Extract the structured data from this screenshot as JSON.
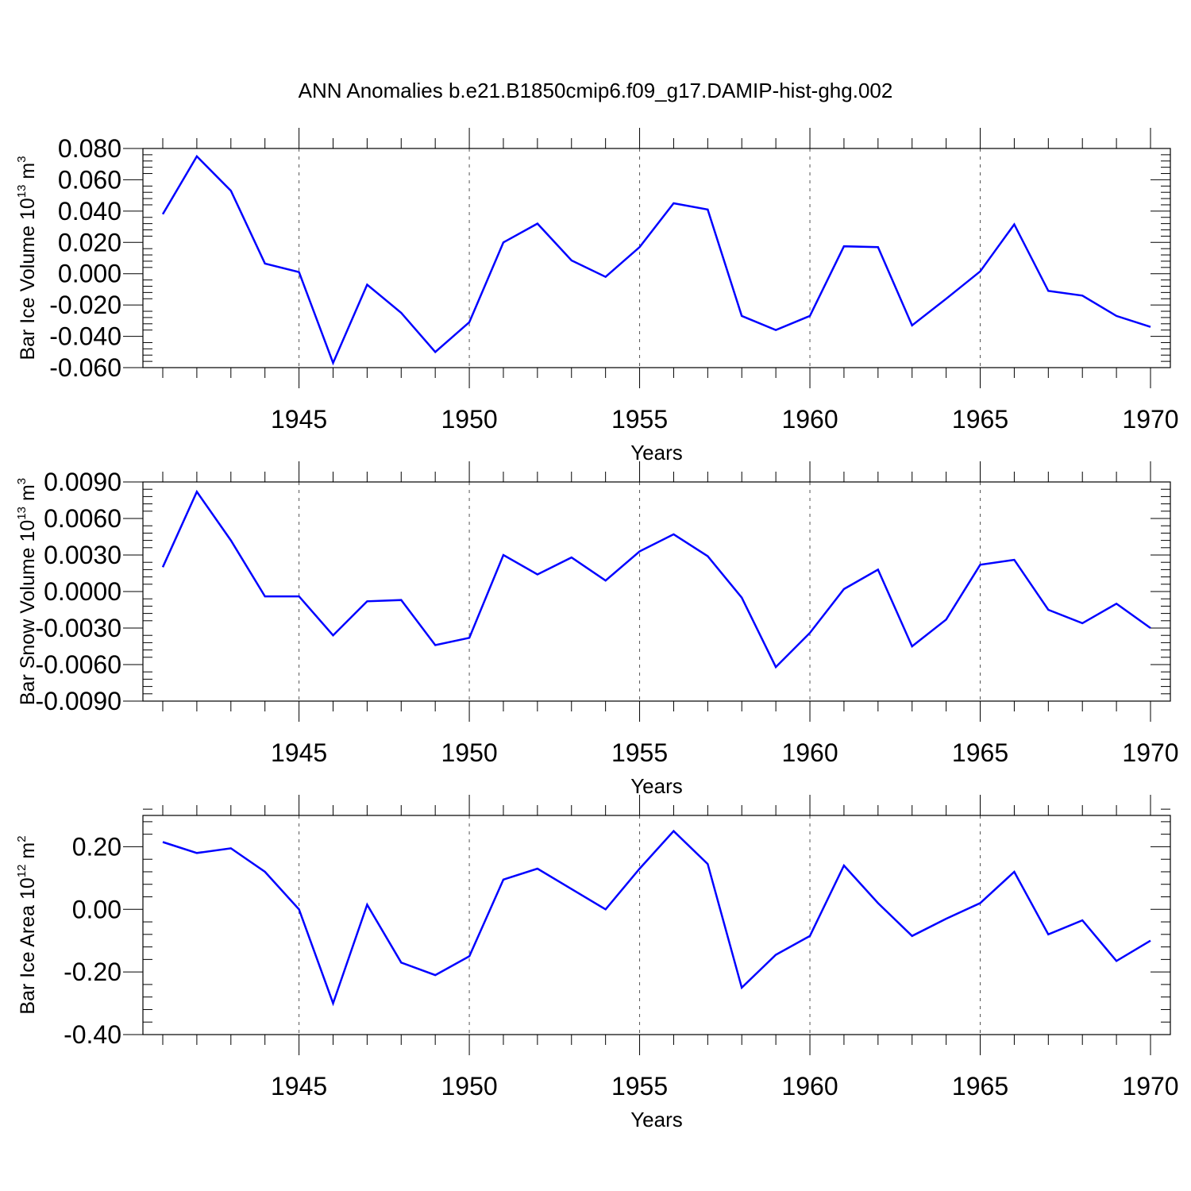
{
  "title": "ANN Anomalies b.e21.B1850cmip6.f09_g17.DAMIP-hist-ghg.002",
  "colors": {
    "line": "#0000ff",
    "axis": "#000000",
    "grid": "#555555"
  },
  "chart_data": [
    {
      "type": "line",
      "ylabel_text": "Bar Ice Volume 10",
      "ylabel_exp": "13",
      "ylabel_unit": " m",
      "ylabel_unit_exp": "3",
      "ylabel_full": "Bar Ice Volume 10^13 m^3",
      "xlabel": "Years",
      "xlim": [
        1941,
        1970
      ],
      "ylim": [
        -0.06,
        0.08
      ],
      "yticks": [
        -0.06,
        -0.04,
        -0.02,
        0.0,
        0.02,
        0.04,
        0.06,
        0.08
      ],
      "ytick_labels": [
        "-0.060",
        "-0.040",
        "-0.020",
        "0.000",
        "0.020",
        "0.040",
        "0.060",
        "0.080"
      ],
      "xticks": [
        1945,
        1950,
        1955,
        1960,
        1965,
        1970
      ],
      "xtick_labels": [
        "1945",
        "1950",
        "1955",
        "1960",
        "1965",
        "1970"
      ],
      "x": [
        1941,
        1942,
        1943,
        1944,
        1945,
        1946,
        1947,
        1948,
        1949,
        1950,
        1951,
        1952,
        1953,
        1954,
        1955,
        1956,
        1957,
        1958,
        1959,
        1960,
        1961,
        1962,
        1963,
        1964,
        1965,
        1966,
        1967,
        1968,
        1969,
        1970
      ],
      "values": [
        0.038,
        0.075,
        0.053,
        0.0065,
        0.001,
        -0.057,
        -0.007,
        -0.025,
        -0.05,
        -0.031,
        0.02,
        0.032,
        0.0085,
        -0.002,
        0.017,
        0.045,
        0.041,
        -0.027,
        -0.036,
        -0.027,
        0.0175,
        0.017,
        -0.033,
        -0.016,
        0.0015,
        0.0315,
        -0.011,
        -0.014,
        -0.027,
        -0.034
      ]
    },
    {
      "type": "line",
      "ylabel_text": "Bar Snow Volume 10",
      "ylabel_exp": "13",
      "ylabel_unit": " m",
      "ylabel_unit_exp": "3",
      "ylabel_full": "Bar Snow Volume 10^13 m^3",
      "xlabel": "Years",
      "xlim": [
        1941,
        1970
      ],
      "ylim": [
        -0.009,
        0.009
      ],
      "yticks": [
        -0.009,
        -0.006,
        -0.003,
        0.0,
        0.003,
        0.006,
        0.009
      ],
      "ytick_labels": [
        "-0.0090",
        "-0.0060",
        "-0.0030",
        "0.0000",
        "0.0030",
        "0.0060",
        "0.0090"
      ],
      "xticks": [
        1945,
        1950,
        1955,
        1960,
        1965,
        1970
      ],
      "xtick_labels": [
        "1945",
        "1950",
        "1955",
        "1960",
        "1965",
        "1970"
      ],
      "x": [
        1941,
        1942,
        1943,
        1944,
        1945,
        1946,
        1947,
        1948,
        1949,
        1950,
        1951,
        1952,
        1953,
        1954,
        1955,
        1956,
        1957,
        1958,
        1959,
        1960,
        1961,
        1962,
        1963,
        1964,
        1965,
        1966,
        1967,
        1968,
        1969,
        1970
      ],
      "values": [
        0.002,
        0.0082,
        0.0042,
        -0.0004,
        -0.0004,
        -0.0036,
        -0.0008,
        -0.0007,
        -0.0044,
        -0.0038,
        0.003,
        0.0014,
        0.0028,
        0.0009,
        0.0033,
        0.0047,
        0.0029,
        -0.0005,
        -0.0062,
        -0.0034,
        0.0002,
        0.0018,
        -0.0045,
        -0.0023,
        0.0022,
        0.0026,
        -0.0015,
        -0.0026,
        -0.001,
        -0.003
      ]
    },
    {
      "type": "line",
      "ylabel_text": "Bar Ice Area 10",
      "ylabel_exp": "12",
      "ylabel_unit": " m",
      "ylabel_unit_exp": "2",
      "ylabel_full": "Bar Ice Area 10^12 m^2",
      "xlabel": "Years",
      "xlim": [
        1941,
        1970
      ],
      "ylim": [
        -0.4,
        0.3
      ],
      "yticks": [
        -0.4,
        -0.2,
        0.0,
        0.2
      ],
      "ytick_labels": [
        "-0.40",
        "-0.20",
        "0.00",
        "0.20"
      ],
      "xticks": [
        1945,
        1950,
        1955,
        1960,
        1965,
        1970
      ],
      "xtick_labels": [
        "1945",
        "1950",
        "1955",
        "1960",
        "1965",
        "1970"
      ],
      "x": [
        1941,
        1942,
        1943,
        1944,
        1945,
        1946,
        1947,
        1948,
        1949,
        1950,
        1951,
        1952,
        1953,
        1954,
        1955,
        1956,
        1957,
        1958,
        1959,
        1960,
        1961,
        1962,
        1963,
        1964,
        1965,
        1966,
        1967,
        1968,
        1969,
        1970
      ],
      "values": [
        0.215,
        0.18,
        0.195,
        0.12,
        0.0,
        -0.3,
        0.015,
        -0.17,
        -0.21,
        -0.15,
        0.095,
        0.13,
        0.065,
        0.0,
        0.13,
        0.25,
        0.145,
        -0.25,
        -0.145,
        -0.085,
        0.14,
        0.02,
        -0.085,
        -0.03,
        0.02,
        0.12,
        -0.08,
        -0.035,
        -0.165,
        -0.1
      ]
    }
  ]
}
